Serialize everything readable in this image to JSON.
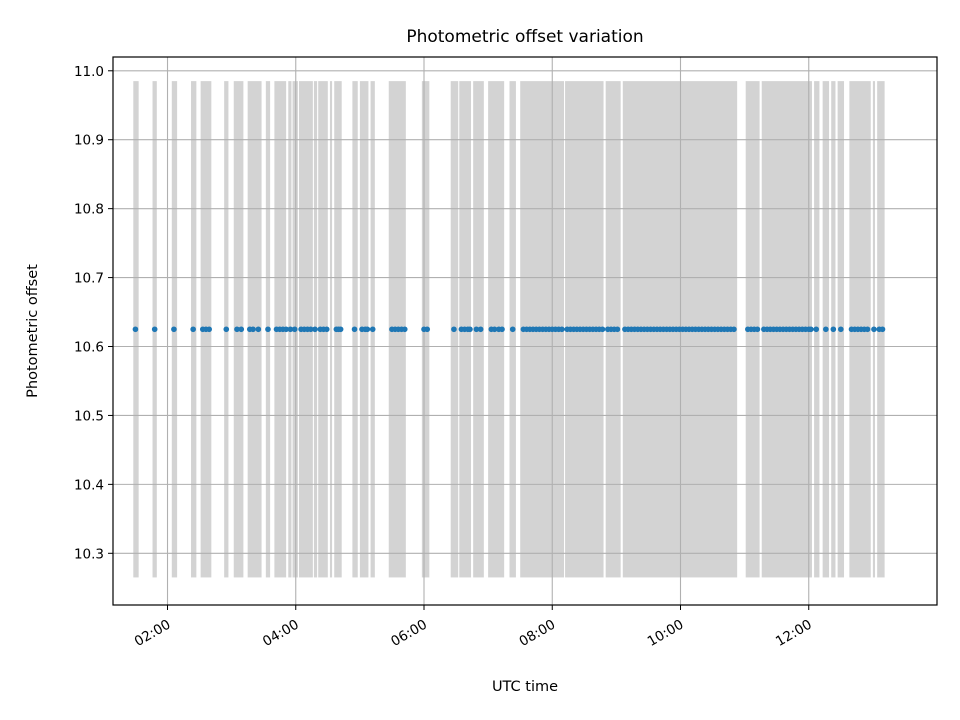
{
  "chart_data": {
    "type": "scatter",
    "title": "Photometric offset variation",
    "xlabel": "UTC time",
    "ylabel": "Photometric offset",
    "x_axis_type": "time",
    "x_tick_labels": [
      "02:00",
      "04:00",
      "06:00",
      "08:00",
      "10:00",
      "12:00"
    ],
    "xlim": [
      "01:09",
      "14:00"
    ],
    "ylim": [
      10.225,
      11.02
    ],
    "y_ticks": [
      10.3,
      10.4,
      10.5,
      10.6,
      10.7,
      10.8,
      10.9,
      11.0
    ],
    "y_tick_labels": [
      "10.3",
      "10.4",
      "10.5",
      "10.6",
      "10.7",
      "10.8",
      "10.9",
      "11.0"
    ],
    "grid": true,
    "shaded_band_range": [
      10.265,
      10.985
    ],
    "shaded_intervals": [
      [
        "01:28",
        "01:33"
      ],
      [
        "01:46",
        "01:50"
      ],
      [
        "02:04",
        "02:09"
      ],
      [
        "02:22",
        "02:27"
      ],
      [
        "02:31",
        "02:41"
      ],
      [
        "02:53",
        "02:57"
      ],
      [
        "03:02",
        "03:11"
      ],
      [
        "03:15",
        "03:28"
      ],
      [
        "03:32",
        "03:36"
      ],
      [
        "03:40",
        "03:51"
      ],
      [
        "03:53",
        "03:56"
      ],
      [
        "03:57",
        "04:02"
      ],
      [
        "04:03",
        "04:16"
      ],
      [
        "04:17",
        "04:20"
      ],
      [
        "04:21",
        "04:30"
      ],
      [
        "04:32",
        "04:34"
      ],
      [
        "04:36",
        "04:43"
      ],
      [
        "04:53",
        "04:58"
      ],
      [
        "05:00",
        "05:08"
      ],
      [
        "05:10",
        "05:14"
      ],
      [
        "05:27",
        "05:43"
      ],
      [
        "05:58",
        "06:05"
      ],
      [
        "06:25",
        "06:32"
      ],
      [
        "06:33",
        "06:44"
      ],
      [
        "06:46",
        "06:56"
      ],
      [
        "07:00",
        "07:15"
      ],
      [
        "07:20",
        "07:26"
      ],
      [
        "07:30",
        "08:11"
      ],
      [
        "08:12",
        "08:48"
      ],
      [
        "08:50",
        "09:04"
      ],
      [
        "09:06",
        "10:53"
      ],
      [
        "11:01",
        "11:14"
      ],
      [
        "11:16",
        "12:03"
      ],
      [
        "12:05",
        "12:10"
      ],
      [
        "12:13",
        "12:19"
      ],
      [
        "12:21",
        "12:25"
      ],
      [
        "12:27",
        "12:33"
      ],
      [
        "12:38",
        "12:58"
      ],
      [
        "13:00",
        "13:02"
      ],
      [
        "13:04",
        "13:11"
      ]
    ],
    "shade_color": "#d3d3d3",
    "series": [
      {
        "color": "#1f77b4",
        "y": 10.625,
        "x": [
          "01:30",
          "01:48",
          "02:06",
          "02:24",
          "02:33",
          "02:36",
          "02:39",
          "02:55",
          "03:05",
          "03:09",
          "03:17",
          "03:20",
          "03:25",
          "03:34",
          "03:42",
          "03:45",
          "03:48",
          "03:51",
          "03:55",
          "03:59",
          "04:05",
          "04:08",
          "04:11",
          "04:14",
          "04:18",
          "04:23",
          "04:26",
          "04:29",
          "04:38",
          "04:40",
          "04:42",
          "04:55",
          "05:02",
          "05:05",
          "05:07",
          "05:12",
          "05:30",
          "05:33",
          "05:36",
          "05:39",
          "05:42",
          "06:00",
          "06:03",
          "06:28",
          "06:35",
          "06:38",
          "06:41",
          "06:43",
          "06:49",
          "06:53",
          "07:03",
          "07:06",
          "07:10",
          "07:13",
          "07:23",
          "07:33",
          "07:36",
          "07:39",
          "07:42",
          "07:45",
          "07:48",
          "07:51",
          "07:54",
          "07:57",
          "08:00",
          "08:03",
          "08:06",
          "08:09",
          "08:14",
          "08:17",
          "08:20",
          "08:23",
          "08:26",
          "08:29",
          "08:32",
          "08:35",
          "08:38",
          "08:41",
          "08:44",
          "08:47",
          "08:52",
          "08:55",
          "08:58",
          "09:01",
          "09:08",
          "09:11",
          "09:14",
          "09:17",
          "09:20",
          "09:23",
          "09:26",
          "09:29",
          "09:32",
          "09:35",
          "09:38",
          "09:41",
          "09:44",
          "09:47",
          "09:50",
          "09:53",
          "09:56",
          "09:59",
          "10:02",
          "10:05",
          "10:08",
          "10:11",
          "10:14",
          "10:17",
          "10:20",
          "10:23",
          "10:26",
          "10:29",
          "10:32",
          "10:35",
          "10:38",
          "10:41",
          "10:44",
          "10:47",
          "10:50",
          "11:03",
          "11:06",
          "11:09",
          "11:12",
          "11:18",
          "11:21",
          "11:24",
          "11:27",
          "11:30",
          "11:33",
          "11:36",
          "11:39",
          "11:42",
          "11:45",
          "11:48",
          "11:51",
          "11:54",
          "11:57",
          "12:00",
          "12:02",
          "12:07",
          "12:16",
          "12:23",
          "12:30",
          "12:40",
          "12:43",
          "12:46",
          "12:49",
          "12:52",
          "12:55",
          "13:01",
          "13:06",
          "13:09"
        ]
      }
    ]
  }
}
